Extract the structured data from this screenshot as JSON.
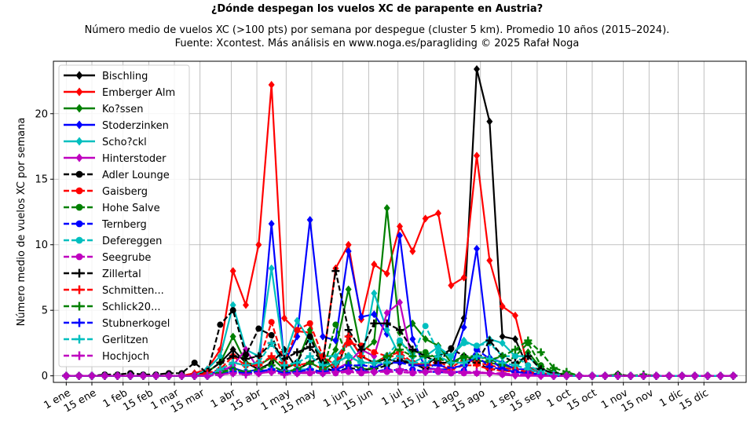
{
  "chart_data": {
    "type": "line",
    "title": "¿Dónde despegan los vuelos XC de parapente en Austria?",
    "subtitle_line1": "Número medio de vuelos XC (>100 pts) por semana por despegue (cluster 5 km). Promedio 10 años (2015–2024).",
    "subtitle_line2": "Fuente: Xcontest. Más análisis en www.noga.es/paragliding © 2025 Rafał Noga",
    "xlabel": "",
    "ylabel": "Número medio de vuelos XC por semana",
    "ylim": [
      -0.5,
      24
    ],
    "xlim": [
      -1,
      53
    ],
    "yticks": [
      0,
      5,
      10,
      15,
      20
    ],
    "grid": true,
    "legend_position": "top-left",
    "x_ticks": [
      {
        "week": 0,
        "label": "1 ene"
      },
      {
        "week": 2,
        "label": "15 ene"
      },
      {
        "week": 4.43,
        "label": "1 feb"
      },
      {
        "week": 6.43,
        "label": "15 feb"
      },
      {
        "week": 8.43,
        "label": "1 mar"
      },
      {
        "week": 10.43,
        "label": "15 mar"
      },
      {
        "week": 12.86,
        "label": "1 abr"
      },
      {
        "week": 14.86,
        "label": "15 abr"
      },
      {
        "week": 17.14,
        "label": "1 may"
      },
      {
        "week": 19.14,
        "label": "15 may"
      },
      {
        "week": 21.57,
        "label": "1 jun"
      },
      {
        "week": 23.57,
        "label": "15 jun"
      },
      {
        "week": 25.86,
        "label": "1 jul"
      },
      {
        "week": 27.86,
        "label": "15 jul"
      },
      {
        "week": 30.29,
        "label": "1 ago"
      },
      {
        "week": 32.29,
        "label": "15 ago"
      },
      {
        "week": 34.71,
        "label": "1 sep"
      },
      {
        "week": 36.71,
        "label": "15 sep"
      },
      {
        "week": 39,
        "label": "1 oct"
      },
      {
        "week": 41,
        "label": "15 oct"
      },
      {
        "week": 43.43,
        "label": "1 nov"
      },
      {
        "week": 45.43,
        "label": "15 nov"
      },
      {
        "week": 47.71,
        "label": "1 dic"
      },
      {
        "week": 49.71,
        "label": "15 dic"
      }
    ],
    "weeks": [
      0,
      1,
      2,
      3,
      4,
      5,
      6,
      7,
      8,
      9,
      10,
      11,
      12,
      13,
      14,
      15,
      16,
      17,
      18,
      19,
      20,
      21,
      22,
      23,
      24,
      25,
      26,
      27,
      28,
      29,
      30,
      31,
      32,
      33,
      34,
      35,
      36,
      37,
      38,
      39,
      40,
      41,
      42,
      43,
      44,
      45,
      46,
      47,
      48,
      49,
      50,
      51,
      52
    ],
    "series": [
      {
        "name": "Bischling",
        "color": "#000000",
        "dash": "solid",
        "marker": "diamond",
        "values": [
          0,
          0,
          0,
          0,
          0,
          0,
          0,
          0,
          0,
          0,
          0.2,
          0.3,
          1,
          2,
          1,
          0.5,
          1,
          2,
          0.5,
          1,
          1.5,
          0.3,
          3,
          1.5,
          1,
          1.3,
          1,
          1,
          0.8,
          1.5,
          2,
          4.4,
          23.4,
          19.4,
          3,
          2.8,
          0.6,
          0.5,
          0.2,
          0.1,
          0,
          0,
          0,
          0,
          0,
          0,
          0,
          0,
          0,
          0,
          0,
          0,
          0
        ]
      },
      {
        "name": "Emberger Alm",
        "color": "#ff0000",
        "dash": "solid",
        "marker": "diamond",
        "values": [
          0,
          0,
          0,
          0,
          0,
          0,
          0,
          0,
          0,
          0,
          0.2,
          0.5,
          2,
          8,
          5.4,
          10,
          22.2,
          4.4,
          3.4,
          3.3,
          1,
          8.2,
          10,
          4.3,
          8.5,
          7.8,
          11.4,
          9.5,
          12,
          12.4,
          6.9,
          7.5,
          16.8,
          8.8,
          5.3,
          4.6,
          0.6,
          0.2,
          0.1,
          0,
          0,
          0,
          0,
          0,
          0,
          0,
          0,
          0,
          0,
          0,
          0,
          0,
          0
        ]
      },
      {
        "name": "Ko?ssen",
        "color": "#008000",
        "dash": "solid",
        "marker": "diamond",
        "values": [
          0,
          0,
          0,
          0,
          0,
          0,
          0,
          0,
          0,
          0,
          0,
          0.3,
          1,
          3,
          1,
          0.8,
          1.4,
          0.5,
          1,
          3.5,
          0.5,
          2,
          6.6,
          1.8,
          2.6,
          12.8,
          3.3,
          4,
          2.8,
          2.3,
          1,
          1.5,
          1.2,
          1,
          0.8,
          0.6,
          1.8,
          0.6,
          0.1,
          0,
          0,
          0,
          0,
          0,
          0,
          0,
          0,
          0,
          0,
          0,
          0,
          0,
          0
        ]
      },
      {
        "name": "Stoderzinken",
        "color": "#0000ff",
        "dash": "solid",
        "marker": "diamond",
        "values": [
          0,
          0,
          0,
          0,
          0,
          0,
          0,
          0,
          0,
          0,
          0,
          0,
          0.5,
          0.6,
          0.3,
          0.5,
          11.6,
          1,
          3,
          11.9,
          3,
          2.7,
          9.5,
          4.5,
          4.7,
          3.2,
          10.7,
          2.8,
          0.6,
          0.5,
          0.5,
          3.7,
          9.7,
          1.4,
          1,
          0.5,
          0.5,
          0.2,
          0.1,
          0,
          0,
          0,
          0,
          0,
          0,
          0,
          0,
          0,
          0,
          0,
          0,
          0,
          0
        ]
      },
      {
        "name": "Scho?ckl",
        "color": "#00bfbf",
        "dash": "solid",
        "marker": "diamond",
        "values": [
          0,
          0,
          0,
          0,
          0,
          0,
          0,
          0,
          0,
          0,
          0,
          0.5,
          1.5,
          5.4,
          2,
          1.5,
          8.2,
          1.3,
          4.2,
          2.7,
          1.5,
          1.5,
          2.5,
          1,
          6.3,
          3.5,
          1.5,
          1,
          1.5,
          2.2,
          1.5,
          2.7,
          2.2,
          2.8,
          2.5,
          1.5,
          1.5,
          0.5,
          0.2,
          0,
          0,
          0,
          0,
          0,
          0,
          0,
          0,
          0,
          0,
          0,
          0,
          0,
          0
        ]
      },
      {
        "name": "Hinterstoder",
        "color": "#bf00bf",
        "dash": "solid",
        "marker": "diamond",
        "values": [
          0,
          0,
          0,
          0,
          0,
          0,
          0,
          0,
          0,
          0,
          0,
          0,
          0.3,
          0.8,
          2,
          0.5,
          0.3,
          0.5,
          0.2,
          0.3,
          0.3,
          0.5,
          1,
          2,
          1.5,
          4.8,
          5.6,
          1,
          0.5,
          0.5,
          0.3,
          0.3,
          0.2,
          0.2,
          0.1,
          0,
          0,
          0,
          0,
          0,
          0,
          0,
          0,
          0,
          0,
          0,
          0,
          0,
          0,
          0,
          0,
          0,
          0
        ]
      },
      {
        "name": "Adler Lounge",
        "color": "#000000",
        "dash": "dashed",
        "marker": "circle",
        "values": [
          0,
          0,
          0,
          0.1,
          0.1,
          0.2,
          0.1,
          0.1,
          0.2,
          0.2,
          1,
          0.2,
          3.9,
          5,
          1.6,
          3.6,
          3.1,
          0.6,
          1,
          3,
          0.7,
          0.3,
          0.6,
          0.5,
          0.5,
          0.8,
          1.2,
          1,
          0.5,
          1,
          2.1,
          1.5,
          1,
          0.5,
          0.5,
          0.3,
          0.3,
          0.2,
          0.1,
          0,
          0,
          0,
          0,
          0.1,
          0,
          0,
          0,
          0,
          0,
          0,
          0,
          0,
          0
        ]
      },
      {
        "name": "Gaisberg",
        "color": "#ff0000",
        "dash": "dashed",
        "marker": "circle",
        "values": [
          0,
          0,
          0,
          0,
          0,
          0,
          0,
          0,
          0,
          0,
          0,
          0.2,
          0.5,
          1.5,
          0.8,
          1,
          4.1,
          1,
          3.5,
          4,
          1.5,
          0.8,
          2.5,
          2.3,
          1.8,
          1.5,
          1.5,
          1,
          0.8,
          1.1,
          0.6,
          1.3,
          1,
          0.8,
          0.6,
          0.5,
          0.3,
          0.2,
          0.1,
          0,
          0,
          0,
          0,
          0,
          0,
          0,
          0,
          0,
          0,
          0,
          0,
          0,
          0
        ]
      },
      {
        "name": "Hohe Salve",
        "color": "#008000",
        "dash": "dashed",
        "marker": "circle",
        "values": [
          0,
          0,
          0,
          0,
          0,
          0,
          0,
          0,
          0,
          0,
          0,
          0,
          0.3,
          0.5,
          0.3,
          0.3,
          0.5,
          0.3,
          0.3,
          0.5,
          0.3,
          3.9,
          1,
          0.5,
          0.6,
          1,
          2.5,
          1.8,
          1.8,
          1.3,
          1,
          1.3,
          1.5,
          1.3,
          0.8,
          1.5,
          2.5,
          0.8,
          0.3,
          0.1,
          0,
          0,
          0,
          0,
          0,
          0,
          0,
          0,
          0,
          0,
          0,
          0,
          0
        ]
      },
      {
        "name": "Ternberg",
        "color": "#0000ff",
        "dash": "dashed",
        "marker": "circle",
        "values": [
          0,
          0,
          0,
          0,
          0,
          0,
          0,
          0,
          0,
          0,
          0,
          0,
          0.2,
          0.4,
          0.2,
          0.3,
          0.5,
          0.3,
          0.2,
          0.3,
          0.2,
          0.3,
          0.5,
          0.4,
          0.3,
          0.5,
          0.4,
          0.5,
          0.3,
          0.3,
          0.2,
          0.4,
          2,
          1.3,
          0.5,
          0.3,
          0.2,
          0.1,
          0,
          0,
          0,
          0,
          0,
          0,
          0,
          0,
          0,
          0,
          0,
          0,
          0,
          0,
          0
        ]
      },
      {
        "name": "Defereggen",
        "color": "#00bfbf",
        "dash": "dashed",
        "marker": "circle",
        "values": [
          0,
          0,
          0,
          0,
          0,
          0,
          0,
          0,
          0,
          0,
          0,
          0,
          0.2,
          0.3,
          0.3,
          0.3,
          0.5,
          0.3,
          0.5,
          0.5,
          0.3,
          1,
          1.5,
          1,
          1,
          1.5,
          2.7,
          1.5,
          3.8,
          1.8,
          1.5,
          2.5,
          2.3,
          2.5,
          1.5,
          1.5,
          0.8,
          0.3,
          0.1,
          0,
          0,
          0,
          0,
          0,
          0,
          0,
          0,
          0,
          0,
          0,
          0,
          0,
          0
        ]
      },
      {
        "name": "Seegrube",
        "color": "#bf00bf",
        "dash": "dashed",
        "marker": "circle",
        "values": [
          0,
          0,
          0,
          0,
          0,
          0,
          0,
          0,
          0,
          0,
          0,
          0,
          0.1,
          0.2,
          0.2,
          0.2,
          0.3,
          0.2,
          0.2,
          0.2,
          0.2,
          0.2,
          0.3,
          0.2,
          0.3,
          0.3,
          0.3,
          0.2,
          0.3,
          0.3,
          0.2,
          0.2,
          0.2,
          0.2,
          0.1,
          0.1,
          0.1,
          0,
          0,
          0,
          0,
          0,
          0,
          0,
          0,
          0,
          0,
          0,
          0,
          0,
          0,
          0,
          0
        ]
      },
      {
        "name": "Zillertal",
        "color": "#000000",
        "dash": "dashed",
        "marker": "plus",
        "values": [
          0,
          0,
          0,
          0,
          0,
          0,
          0,
          0,
          0,
          0,
          0,
          0.3,
          1,
          1.5,
          1.3,
          1.5,
          2.5,
          1.3,
          1.8,
          2.2,
          1,
          8,
          3.5,
          2,
          4,
          4,
          3.5,
          2,
          1.5,
          1,
          1,
          1,
          1,
          2.7,
          1.5,
          1,
          1.5,
          0.5,
          0.2,
          0,
          0,
          0,
          0,
          0,
          0,
          0,
          0,
          0,
          0,
          0,
          0,
          0,
          0
        ]
      },
      {
        "name": "Schmitten...",
        "color": "#ff0000",
        "dash": "dashed",
        "marker": "plus",
        "values": [
          0,
          0,
          0,
          0,
          0,
          0,
          0,
          0,
          0,
          0,
          0,
          0.2,
          0.5,
          1,
          0.8,
          0.8,
          1.5,
          0.8,
          0.8,
          1,
          0.5,
          1,
          3,
          1.5,
          1,
          1.5,
          1.8,
          1,
          0.8,
          0.8,
          0.5,
          0.8,
          0.8,
          0.5,
          0.4,
          0.3,
          0.2,
          0.1,
          0,
          0,
          0,
          0,
          0,
          0,
          0,
          0,
          0,
          0,
          0,
          0,
          0,
          0,
          0
        ]
      },
      {
        "name": "Schlick20...",
        "color": "#008000",
        "dash": "dashed",
        "marker": "plus",
        "values": [
          0,
          0,
          0,
          0,
          0,
          0,
          0,
          0,
          0,
          0,
          0,
          0,
          0.2,
          0.5,
          0.3,
          0.5,
          0.8,
          0.3,
          0.5,
          1,
          0.5,
          1,
          1.5,
          1,
          1,
          1.5,
          2,
          1.5,
          1.5,
          1.5,
          1,
          1.5,
          1.5,
          1.2,
          1.5,
          2,
          2.7,
          1.8,
          0.6,
          0.3,
          0,
          0,
          0,
          0.1,
          0,
          0.1,
          0,
          0,
          0,
          0,
          0,
          0,
          0
        ]
      },
      {
        "name": "Stubnerkogel",
        "color": "#0000ff",
        "dash": "dashed",
        "marker": "plus",
        "values": [
          0,
          0,
          0,
          0,
          0,
          0,
          0,
          0,
          0,
          0,
          0,
          0,
          0.1,
          0.3,
          0.2,
          0.3,
          0.5,
          0.2,
          0.3,
          0.5,
          0.3,
          0.5,
          0.8,
          0.8,
          0.7,
          1,
          1,
          0.8,
          0.8,
          0.8,
          0.6,
          0.8,
          1.5,
          0.7,
          0.5,
          0.3,
          0.2,
          0.1,
          0,
          0,
          0,
          0,
          0,
          0,
          0,
          0,
          0,
          0,
          0,
          0,
          0,
          0,
          0
        ]
      },
      {
        "name": "Gerlitzen",
        "color": "#00bfbf",
        "dash": "dashed",
        "marker": "plus",
        "values": [
          0,
          0,
          0,
          0,
          0,
          0,
          0,
          0,
          0,
          0,
          0,
          0,
          0.5,
          1,
          0.8,
          1,
          2.5,
          0.8,
          1,
          1.5,
          0.8,
          1,
          1.5,
          1,
          1,
          1,
          1.5,
          1,
          1,
          1.5,
          1,
          1,
          1.5,
          1.3,
          1,
          0.8,
          0.5,
          0.2,
          0.1,
          0,
          0,
          0,
          0,
          0,
          0,
          0,
          0,
          0,
          0,
          0,
          0,
          0,
          0
        ]
      },
      {
        "name": "Hochjoch",
        "color": "#bf00bf",
        "dash": "dashed",
        "marker": "plus",
        "values": [
          0,
          0,
          0,
          0,
          0,
          0,
          0,
          0,
          0,
          0,
          0,
          0,
          0.1,
          0.2,
          0.1,
          0.2,
          0.3,
          0.1,
          0.2,
          0.3,
          0.2,
          0.3,
          0.4,
          0.3,
          0.3,
          0.4,
          0.5,
          0.3,
          0.3,
          0.4,
          0.3,
          0.3,
          0.3,
          0.2,
          0.2,
          0.1,
          0.1,
          0,
          0,
          0,
          0,
          0,
          0,
          0,
          0,
          0,
          0,
          0,
          0,
          0,
          0,
          0,
          0
        ]
      }
    ]
  }
}
